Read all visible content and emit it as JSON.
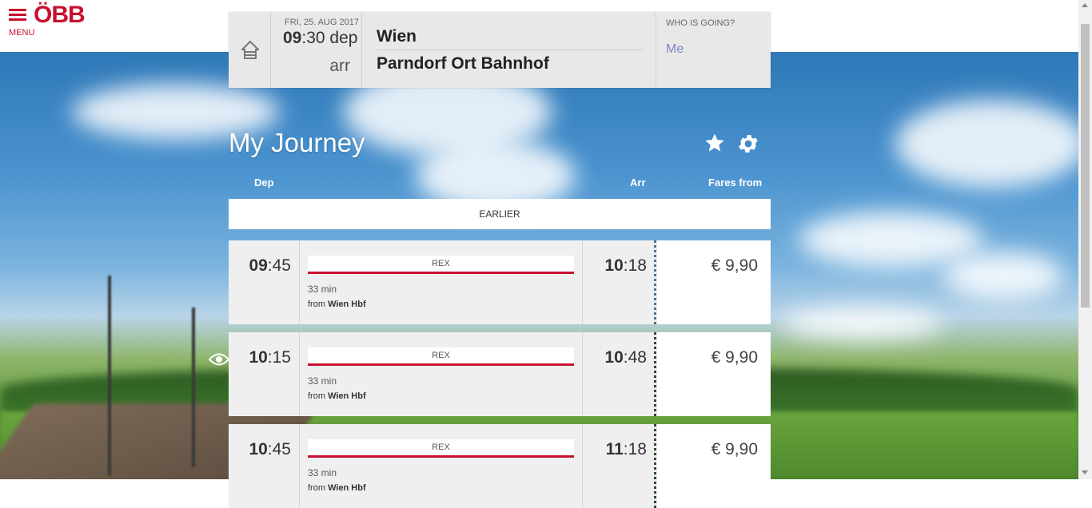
{
  "header": {
    "menu_label": "MENU",
    "logo_text": "ÖBB",
    "brand_color": "#c8102e"
  },
  "search": {
    "date": "FRI, 25. AUG 2017",
    "dep_hour": "09",
    "dep_rest": ":30 dep",
    "arr_word": "arr",
    "from": "Wien",
    "to": "Parndorf Ort Bahnhof",
    "who_label": "WHO IS GOING?",
    "who_value": "Me"
  },
  "journey": {
    "title": "My Journey",
    "col_dep": "Dep",
    "col_arr": "Arr",
    "col_fares": "Fares from",
    "earlier": "EARLIER"
  },
  "connections": [
    {
      "dep_h": "09",
      "dep_m": ":45",
      "train": "REX",
      "duration": "33 min",
      "from_prefix": "from",
      "from_station": "Wien Hbf",
      "arr_h": "10",
      "arr_m": ":18",
      "fare": "€ 9,90"
    },
    {
      "dep_h": "10",
      "dep_m": ":15",
      "train": "REX",
      "duration": "33 min",
      "from_prefix": "from",
      "from_station": "Wien Hbf",
      "arr_h": "10",
      "arr_m": ":48",
      "fare": "€ 9,90"
    },
    {
      "dep_h": "10",
      "dep_m": ":45",
      "train": "REX",
      "duration": "33 min",
      "from_prefix": "from",
      "from_station": "Wien Hbf",
      "arr_h": "11",
      "arr_m": ":18",
      "fare": "€ 9,90"
    }
  ],
  "icons": [
    "menu-icon",
    "home-icon",
    "star-icon",
    "gear-icon",
    "eye-icon"
  ]
}
